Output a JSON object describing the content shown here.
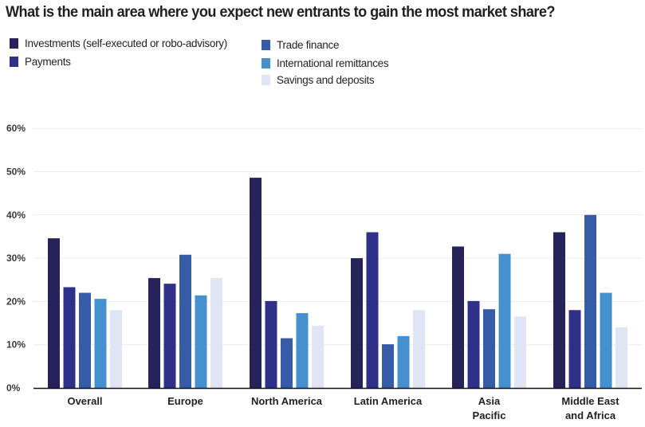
{
  "chart_data": {
    "type": "bar",
    "title": "What is the main area where you expect new entrants to gain the most market share?",
    "xlabel": "",
    "ylabel": "",
    "ylim": [
      0,
      60
    ],
    "yticks": [
      0,
      10,
      20,
      30,
      40,
      50,
      60
    ],
    "ytick_labels": [
      "0%",
      "10%",
      "20%",
      "30%",
      "40%",
      "50%",
      "60%"
    ],
    "grid": true,
    "legend_position": "top-left",
    "categories": [
      [
        "Overall"
      ],
      [
        "Europe"
      ],
      [
        "North America"
      ],
      [
        "Latin America"
      ],
      [
        "Asia",
        "Pacific"
      ],
      [
        "Middle East",
        "and Africa"
      ]
    ],
    "series": [
      {
        "name": "Investments (self-executed or robo-advisory)",
        "color": "#26235a",
        "values": [
          34.6,
          25.4,
          48.6,
          30.0,
          32.7,
          36.0
        ]
      },
      {
        "name": "Payments",
        "color": "#2f3189",
        "values": [
          23.3,
          24.1,
          20.1,
          36.0,
          20.1,
          18.0
        ]
      },
      {
        "name": "Trade finance",
        "color": "#365ca8",
        "values": [
          22.0,
          30.8,
          11.5,
          10.1,
          18.2,
          40.0
        ]
      },
      {
        "name": "International remittances",
        "color": "#4590cf",
        "values": [
          20.6,
          21.4,
          17.3,
          12.0,
          31.0,
          22.0
        ]
      },
      {
        "name": "Savings and deposits",
        "color": "#dfe5f5",
        "values": [
          18.0,
          25.4,
          14.4,
          18.0,
          16.5,
          14.0
        ]
      }
    ]
  }
}
